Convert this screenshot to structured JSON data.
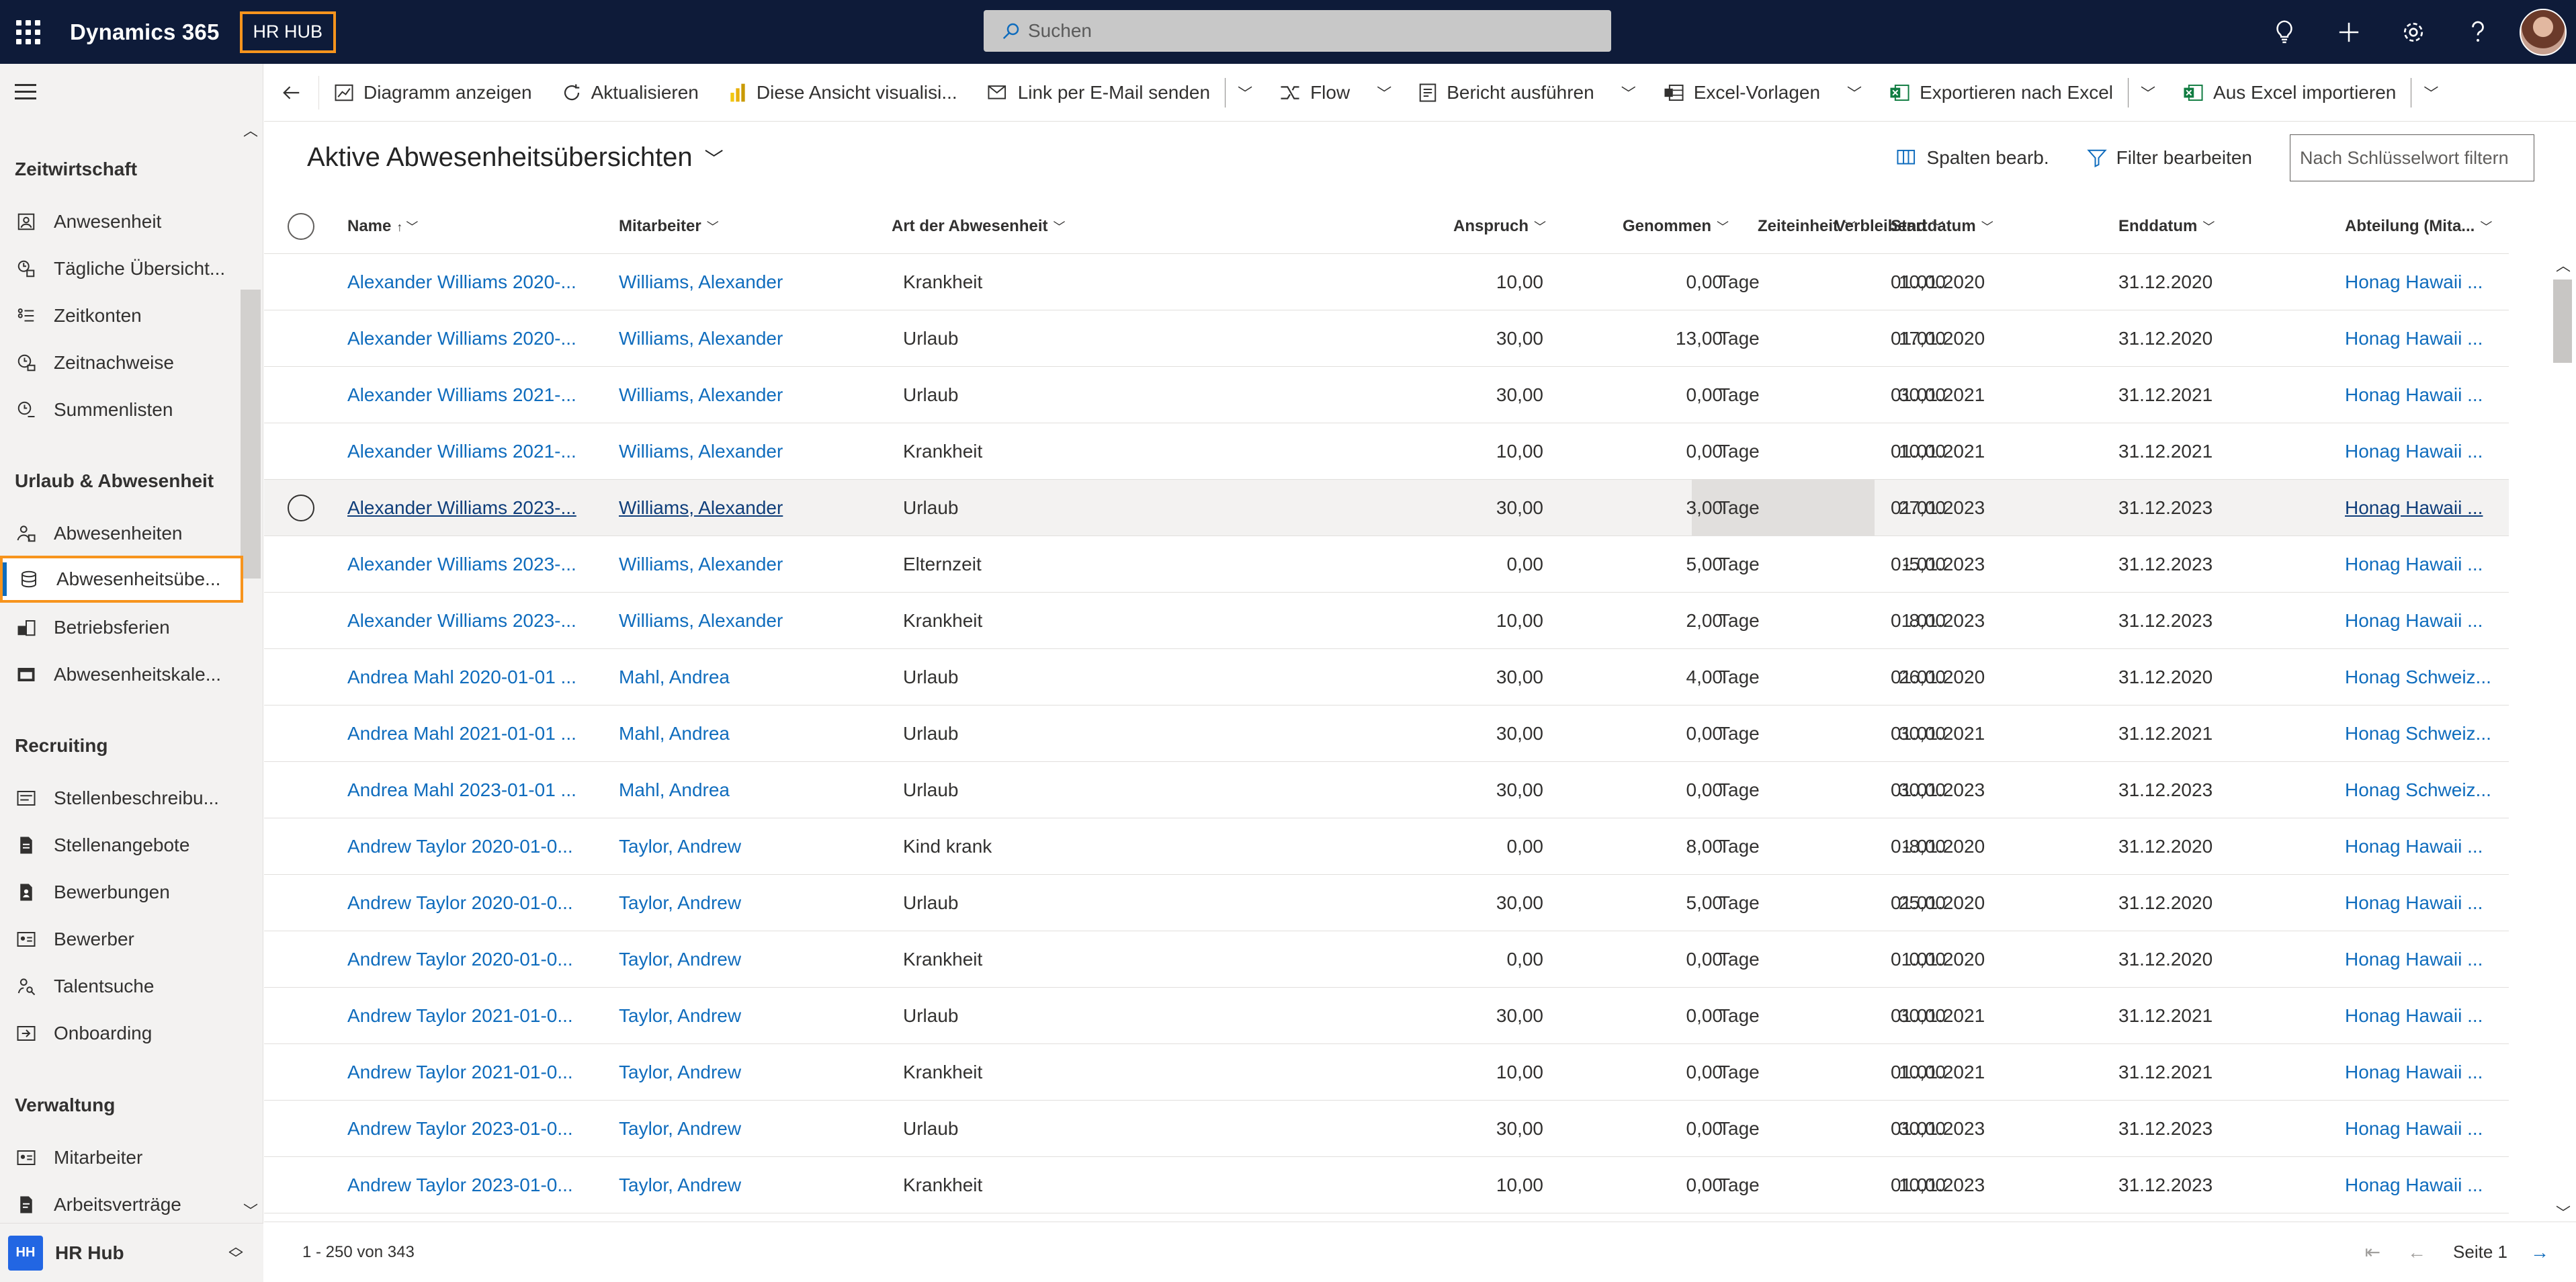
{
  "header": {
    "app_title": "Dynamics 365",
    "app_badge": "HR HUB",
    "search_placeholder": "Suchen"
  },
  "sidebar": {
    "groups": [
      {
        "label": "Zeitwirtschaft"
      },
      {
        "label": "Urlaub & Abwesenheit"
      },
      {
        "label": "Recruiting"
      },
      {
        "label": "Verwaltung"
      }
    ],
    "items": [
      {
        "label": "Anwesenheit",
        "icon": "attendance-icon"
      },
      {
        "label": "Tägliche Übersicht...",
        "icon": "daily-overview-icon"
      },
      {
        "label": "Zeitkonten",
        "icon": "time-accounts-icon"
      },
      {
        "label": "Zeitnachweise",
        "icon": "timesheet-icon"
      },
      {
        "label": "Summenlisten",
        "icon": "sum-lists-icon"
      },
      {
        "label": "Abwesenheiten",
        "icon": "absence-icon"
      },
      {
        "label": "Abwesenheitsübe...",
        "icon": "absence-overview-icon"
      },
      {
        "label": "Betriebsferien",
        "icon": "company-holidays-icon"
      },
      {
        "label": "Abwesenheitskale...",
        "icon": "absence-calendar-icon"
      },
      {
        "label": "Stellenbeschreibu...",
        "icon": "job-description-icon"
      },
      {
        "label": "Stellenangebote",
        "icon": "job-offer-icon"
      },
      {
        "label": "Bewerbungen",
        "icon": "application-icon"
      },
      {
        "label": "Bewerber",
        "icon": "applicant-icon"
      },
      {
        "label": "Talentsuche",
        "icon": "talent-search-icon"
      },
      {
        "label": "Onboarding",
        "icon": "onboarding-icon"
      },
      {
        "label": "Mitarbeiter",
        "icon": "employee-icon"
      },
      {
        "label": "Arbeitsverträge",
        "icon": "contract-icon"
      }
    ],
    "footer": {
      "badge": "HH",
      "label": "HR Hub"
    }
  },
  "commandbar": {
    "items": [
      {
        "label": "Diagramm anzeigen",
        "icon": "chart-icon"
      },
      {
        "label": "Aktualisieren",
        "icon": "refresh-icon"
      },
      {
        "label": "Diese Ansicht visualisi...",
        "icon": "powerbi-icon"
      },
      {
        "label": "Link per E-Mail senden",
        "icon": "email-link-icon"
      },
      {
        "label": "Flow",
        "icon": "flow-icon"
      },
      {
        "label": "Bericht ausführen",
        "icon": "report-icon"
      },
      {
        "label": "Excel-Vorlagen",
        "icon": "excel-template-icon"
      },
      {
        "label": "Exportieren nach Excel",
        "icon": "excel-export-icon"
      },
      {
        "label": "Aus Excel importieren",
        "icon": "excel-import-icon"
      }
    ]
  },
  "view": {
    "title": "Aktive Abwesenheitsübersichten",
    "edit_columns": "Spalten bearb.",
    "edit_filters": "Filter bearbeiten",
    "keyword_placeholder": "Nach Schlüsselwort filtern"
  },
  "grid": {
    "columns": {
      "name": "Name",
      "mitarbeiter": "Mitarbeiter",
      "art": "Art der Abwesenheit",
      "anspruch": "Anspruch",
      "genommen": "Genommen",
      "verbleibend": "Verbleibend",
      "zeiteinheit": "Zeiteinheit",
      "startdatum": "Startdatum",
      "enddatum": "Enddatum",
      "abteilung": "Abteilung (Mita..."
    },
    "rows": [
      {
        "name": "Alexander Williams 2020-...",
        "mitarbeiter": "Williams, Alexander",
        "art": "Krankheit",
        "anspruch": "10,00",
        "genommen": "0,00",
        "verbleibend": "10,00",
        "zeiteinheit": "Tage",
        "start": "01.01.2020",
        "end": "31.12.2020",
        "abteilung": "Honag Hawaii ..."
      },
      {
        "name": "Alexander Williams 2020-...",
        "mitarbeiter": "Williams, Alexander",
        "art": "Urlaub",
        "anspruch": "30,00",
        "genommen": "13,00",
        "verbleibend": "17,00",
        "zeiteinheit": "Tage",
        "start": "01.01.2020",
        "end": "31.12.2020",
        "abteilung": "Honag Hawaii ..."
      },
      {
        "name": "Alexander Williams 2021-...",
        "mitarbeiter": "Williams, Alexander",
        "art": "Urlaub",
        "anspruch": "30,00",
        "genommen": "0,00",
        "verbleibend": "30,00",
        "zeiteinheit": "Tage",
        "start": "01.01.2021",
        "end": "31.12.2021",
        "abteilung": "Honag Hawaii ..."
      },
      {
        "name": "Alexander Williams 2021-...",
        "mitarbeiter": "Williams, Alexander",
        "art": "Krankheit",
        "anspruch": "10,00",
        "genommen": "0,00",
        "verbleibend": "10,00",
        "zeiteinheit": "Tage",
        "start": "01.01.2021",
        "end": "31.12.2021",
        "abteilung": "Honag Hawaii ..."
      },
      {
        "name": "Alexander Williams 2023-...",
        "mitarbeiter": "Williams, Alexander",
        "art": "Urlaub",
        "anspruch": "30,00",
        "genommen": "3,00",
        "verbleibend": "27,00",
        "zeiteinheit": "Tage",
        "start": "01.01.2023",
        "end": "31.12.2023",
        "abteilung": "Honag Hawaii ..."
      },
      {
        "name": "Alexander Williams 2023-...",
        "mitarbeiter": "Williams, Alexander",
        "art": "Elternzeit",
        "anspruch": "0,00",
        "genommen": "5,00",
        "verbleibend": "-5,00",
        "zeiteinheit": "Tage",
        "start": "01.01.2023",
        "end": "31.12.2023",
        "abteilung": "Honag Hawaii ..."
      },
      {
        "name": "Alexander Williams 2023-...",
        "mitarbeiter": "Williams, Alexander",
        "art": "Krankheit",
        "anspruch": "10,00",
        "genommen": "2,00",
        "verbleibend": "8,00",
        "zeiteinheit": "Tage",
        "start": "01.01.2023",
        "end": "31.12.2023",
        "abteilung": "Honag Hawaii ..."
      },
      {
        "name": "Andrea Mahl 2020-01-01 ...",
        "mitarbeiter": "Mahl, Andrea",
        "art": "Urlaub",
        "anspruch": "30,00",
        "genommen": "4,00",
        "verbleibend": "26,00",
        "zeiteinheit": "Tage",
        "start": "01.01.2020",
        "end": "31.12.2020",
        "abteilung": "Honag Schweiz..."
      },
      {
        "name": "Andrea Mahl 2021-01-01 ...",
        "mitarbeiter": "Mahl, Andrea",
        "art": "Urlaub",
        "anspruch": "30,00",
        "genommen": "0,00",
        "verbleibend": "30,00",
        "zeiteinheit": "Tage",
        "start": "01.01.2021",
        "end": "31.12.2021",
        "abteilung": "Honag Schweiz..."
      },
      {
        "name": "Andrea Mahl 2023-01-01 ...",
        "mitarbeiter": "Mahl, Andrea",
        "art": "Urlaub",
        "anspruch": "30,00",
        "genommen": "0,00",
        "verbleibend": "30,00",
        "zeiteinheit": "Tage",
        "start": "01.01.2023",
        "end": "31.12.2023",
        "abteilung": "Honag Schweiz..."
      },
      {
        "name": "Andrew Taylor 2020-01-0...",
        "mitarbeiter": "Taylor, Andrew",
        "art": "Kind krank",
        "anspruch": "0,00",
        "genommen": "8,00",
        "verbleibend": "-8,00",
        "zeiteinheit": "Tage",
        "start": "01.01.2020",
        "end": "31.12.2020",
        "abteilung": "Honag Hawaii ..."
      },
      {
        "name": "Andrew Taylor 2020-01-0...",
        "mitarbeiter": "Taylor, Andrew",
        "art": "Urlaub",
        "anspruch": "30,00",
        "genommen": "5,00",
        "verbleibend": "25,00",
        "zeiteinheit": "Tage",
        "start": "01.01.2020",
        "end": "31.12.2020",
        "abteilung": "Honag Hawaii ..."
      },
      {
        "name": "Andrew Taylor 2020-01-0...",
        "mitarbeiter": "Taylor, Andrew",
        "art": "Krankheit",
        "anspruch": "0,00",
        "genommen": "0,00",
        "verbleibend": "0,00",
        "zeiteinheit": "Tage",
        "start": "01.01.2020",
        "end": "31.12.2020",
        "abteilung": "Honag Hawaii ..."
      },
      {
        "name": "Andrew Taylor 2021-01-0...",
        "mitarbeiter": "Taylor, Andrew",
        "art": "Urlaub",
        "anspruch": "30,00",
        "genommen": "0,00",
        "verbleibend": "30,00",
        "zeiteinheit": "Tage",
        "start": "01.01.2021",
        "end": "31.12.2021",
        "abteilung": "Honag Hawaii ..."
      },
      {
        "name": "Andrew Taylor 2021-01-0...",
        "mitarbeiter": "Taylor, Andrew",
        "art": "Krankheit",
        "anspruch": "10,00",
        "genommen": "0,00",
        "verbleibend": "10,00",
        "zeiteinheit": "Tage",
        "start": "01.01.2021",
        "end": "31.12.2021",
        "abteilung": "Honag Hawaii ..."
      },
      {
        "name": "Andrew Taylor 2023-01-0...",
        "mitarbeiter": "Taylor, Andrew",
        "art": "Urlaub",
        "anspruch": "30,00",
        "genommen": "0,00",
        "verbleibend": "30,00",
        "zeiteinheit": "Tage",
        "start": "01.01.2023",
        "end": "31.12.2023",
        "abteilung": "Honag Hawaii ..."
      },
      {
        "name": "Andrew Taylor 2023-01-0...",
        "mitarbeiter": "Taylor, Andrew",
        "art": "Krankheit",
        "anspruch": "10,00",
        "genommen": "0,00",
        "verbleibend": "10,00",
        "zeiteinheit": "Tage",
        "start": "01.01.2023",
        "end": "31.12.2023",
        "abteilung": "Honag Hawaii ..."
      }
    ],
    "footer": {
      "record_count": "1 - 250 von 343",
      "page_label": "Seite 1"
    }
  },
  "colors": {
    "topbar": "#0e1b39",
    "accent_orange": "#f7941d",
    "link_blue": "#0f6cbd"
  }
}
